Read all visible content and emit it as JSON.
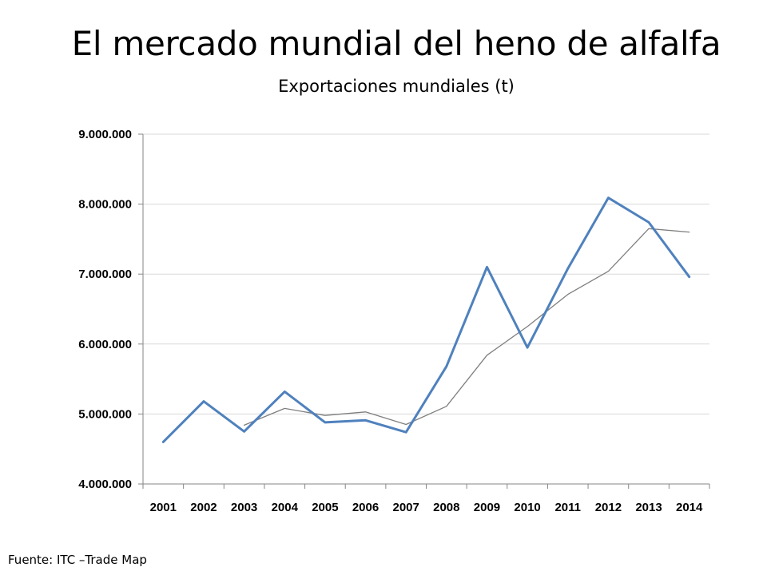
{
  "slide": {
    "title": "El mercado mundial del heno de alfalfa",
    "subtitle": "Exportaciones mundiales (t)",
    "source": "Fuente: ITC –Trade Map"
  },
  "chart_data": {
    "type": "line",
    "title": "El mercado mundial del heno de alfalfa",
    "subtitle": "Exportaciones mundiales (t)",
    "xlabel": "",
    "ylabel": "",
    "categories": [
      "2001",
      "2002",
      "2003",
      "2004",
      "2005",
      "2006",
      "2007",
      "2008",
      "2009",
      "2010",
      "2011",
      "2012",
      "2013",
      "2014"
    ],
    "ylim": [
      4000000,
      9000000
    ],
    "yticks": [
      4000000,
      5000000,
      6000000,
      7000000,
      8000000,
      9000000
    ],
    "ytick_labels": [
      "4.000.000",
      "5.000.000",
      "6.000.000",
      "7.000.000",
      "8.000.000",
      "9.000.000"
    ],
    "grid": true,
    "legend": "none",
    "series": [
      {
        "color": "#4F81BD",
        "values": [
          4600000,
          5180000,
          4750000,
          5320000,
          4880000,
          4910000,
          4740000,
          5680000,
          7100000,
          5950000,
          7080000,
          8090000,
          7740000,
          6960000
        ]
      },
      {
        "color": "#7F7F7F",
        "values": [
          null,
          null,
          4840000,
          5080000,
          4980000,
          5030000,
          4850000,
          5110000,
          5840000,
          6250000,
          6710000,
          7040000,
          7650000,
          7600000
        ]
      }
    ]
  }
}
